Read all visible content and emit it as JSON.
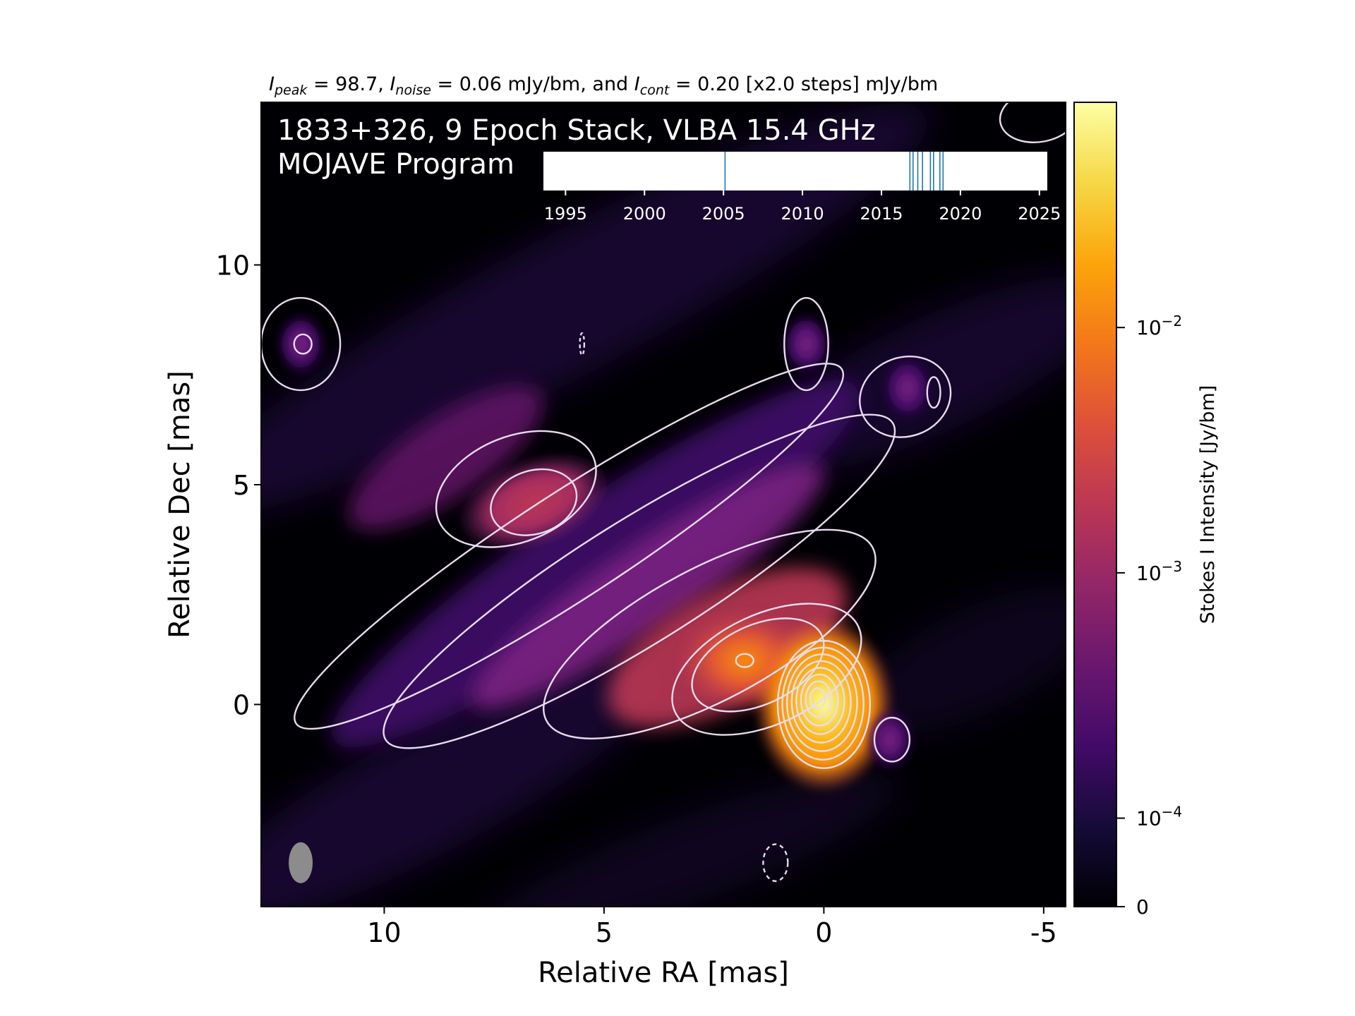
{
  "header": {
    "peak_sym": "I",
    "peak_sub": "peak",
    "peak_val": " = 98.7, ",
    "noise_sym": "I",
    "noise_sub": "noise",
    "noise_val": " = 0.06 mJy/bm, and ",
    "cont_sym": "I",
    "cont_sub": "cont",
    "cont_val": " = 0.20 [x2.0 steps] mJy/bm"
  },
  "image_title": {
    "line1": "1833+326, 9 Epoch Stack, VLBA 15.4 GHz",
    "line2": "MOJAVE Program"
  },
  "chart_data": {
    "type": "heatmap",
    "xlabel": "Relative RA [mas]",
    "ylabel": "Relative Dec [mas]",
    "xlim": [
      12.8,
      -5.5
    ],
    "ylim": [
      -4.6,
      13.7
    ],
    "x_ticks": [
      10,
      5,
      0,
      -5
    ],
    "x_tick_labels": [
      "10",
      "5",
      "0",
      "-5"
    ],
    "y_ticks": [
      0,
      5,
      10
    ],
    "y_tick_labels": [
      "0",
      "5",
      "10"
    ],
    "colorbar": {
      "label": "Stokes I Intensity [Jy/bm]",
      "colormap": "inferno",
      "ticks": [
        {
          "value": 0,
          "label": "0"
        },
        {
          "value": 0.0001,
          "label": "10",
          "exp": "−4"
        },
        {
          "value": 0.001,
          "label": "10",
          "exp": "−3"
        },
        {
          "value": 0.01,
          "label": "10",
          "exp": "−2"
        }
      ]
    },
    "peak_position": [
      0,
      0
    ],
    "jet_position_angle_deg": -62,
    "components": [
      {
        "ra": 0.0,
        "dec": 0.0,
        "kind": "core"
      },
      {
        "ra": 1.8,
        "dec": 1.0,
        "kind": "knot"
      },
      {
        "ra": 6.6,
        "dec": 4.6,
        "kind": "knot"
      },
      {
        "ra": 9.6,
        "dec": 6.3,
        "kind": "extended"
      },
      {
        "ra": 11.9,
        "dec": 8.2,
        "kind": "isolated"
      },
      {
        "ra": 0.4,
        "dec": 8.2,
        "kind": "isolated"
      },
      {
        "ra": -1.9,
        "dec": 7.2,
        "kind": "isolated"
      },
      {
        "ra": -1.5,
        "dec": -0.8,
        "kind": "isolated"
      }
    ],
    "beam": {
      "ra": 11.9,
      "dec": -3.6
    },
    "timeline": {
      "years": [
        1995,
        2000,
        2005,
        2010,
        2015,
        2020,
        2025
      ],
      "tick_labels": [
        "1995",
        "2000",
        "2005",
        "2010",
        "2015",
        "2020",
        "2025"
      ],
      "range": [
        1993.6,
        2025.5
      ],
      "epochs": [
        2005.1,
        2016.8,
        2017.0,
        2017.3,
        2017.6,
        2018.1,
        2018.3,
        2018.7,
        2018.9
      ],
      "epoch_color": "#1f77b4"
    }
  },
  "colors": {
    "background": "#000004",
    "contour": "#e9dcef",
    "beam": "#8c8c8c"
  }
}
